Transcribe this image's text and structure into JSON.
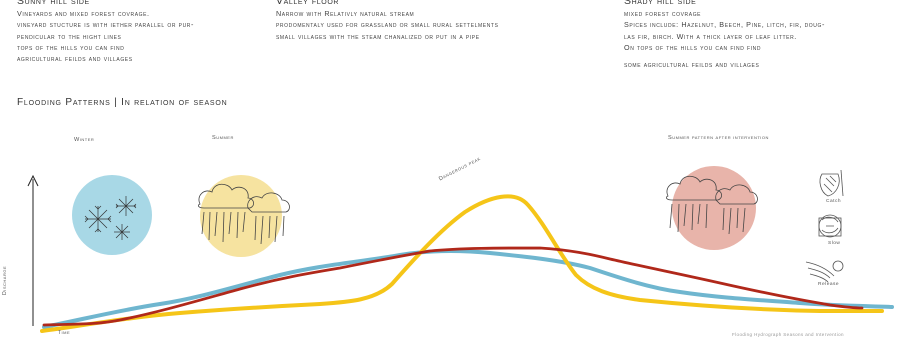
{
  "sunny": {
    "title": "Sunny hill side",
    "lines": [
      "Vineyards and mixed forest covrage.",
      "vineyard stucture is with iether parallel or pur-",
      "pendicular to the hight lines",
      "tops of the hills you can find",
      "agricultural feilds and villages"
    ]
  },
  "valley": {
    "title": "Valley floor",
    "lines": [
      "Narrow with Relativly natural stream",
      "prodomentaly used for grassland or small rural settelments",
      "small villages with the steam chanalized or put in a pipe"
    ]
  },
  "shady": {
    "title": "Shady hill side",
    "lines": [
      "mixed forest covrage",
      "Spices include: Hazelnut, Beech, Pine, litch, fir, doug-",
      "las fir, birch. With a thick layer of leaf litter.",
      "On tops of the hills you can find find"
    ],
    "last_line": "some agricultural feilds and villages"
  },
  "diagram": {
    "title": "Flooding Patterns | In relation of season",
    "labels": {
      "winter": "Winter",
      "summer": "Summer",
      "after": "Summer pattern after intervention",
      "peak": "Dangerous peak",
      "discharge": "Discharge",
      "time": "Time",
      "catch": "Catch",
      "slow": "Slow",
      "release": "Release"
    },
    "colors": {
      "winter_circle": "#a8d8e6",
      "summer_circle": "#f6e3a0",
      "after_circle": "#e8b4aa",
      "blue_line": "#6fb6cf",
      "yellow_line": "#f5c518",
      "red_line": "#b0281a"
    },
    "icons": [
      "snowflake-icon",
      "rain-cloud-icon",
      "catch-icon",
      "slow-icon",
      "release-icon"
    ]
  },
  "footer": "Flooding Hydrograph Seasons and Intervention"
}
